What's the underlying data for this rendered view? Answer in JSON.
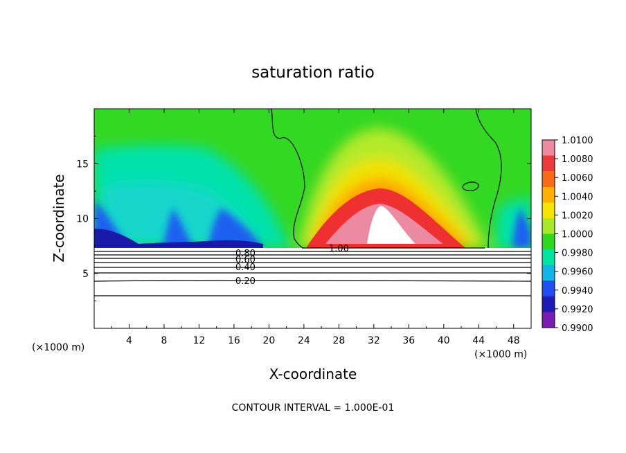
{
  "chart_data": {
    "type": "heatmap",
    "title": "saturation ratio",
    "xlabel": "X-coordinate",
    "ylabel": "Z-coordinate",
    "x_unit": "(×1000 m)",
    "y_unit": "(×1000 m)",
    "xlim": [
      0,
      50
    ],
    "ylim": [
      0,
      20
    ],
    "x_ticks": [
      4,
      8,
      12,
      16,
      20,
      24,
      28,
      32,
      36,
      40,
      44,
      48
    ],
    "y_ticks": [
      5,
      10,
      15
    ],
    "colorbar": {
      "min": 0.99,
      "max": 1.01,
      "labels": [
        "1.0100",
        "1.0080",
        "1.0060",
        "1.0040",
        "1.0020",
        "1.0000",
        "0.9980",
        "0.9960",
        "0.9940",
        "0.9920",
        "0.9900"
      ],
      "colors": [
        "#ef8aa0",
        "#ec3a3a",
        "#fa6a18",
        "#ffb000",
        "#f4e400",
        "#a8ea2a",
        "#2ed81e",
        "#00e6a0",
        "#12b6e6",
        "#1e4ef2",
        "#1c1cb4",
        "#7a1cb4"
      ]
    },
    "contour_labels": [
      "0.80",
      "0.60",
      "0.40",
      "0.20",
      "1.00"
    ],
    "footer": "CONTOUR INTERVAL = 1.000E-01"
  }
}
